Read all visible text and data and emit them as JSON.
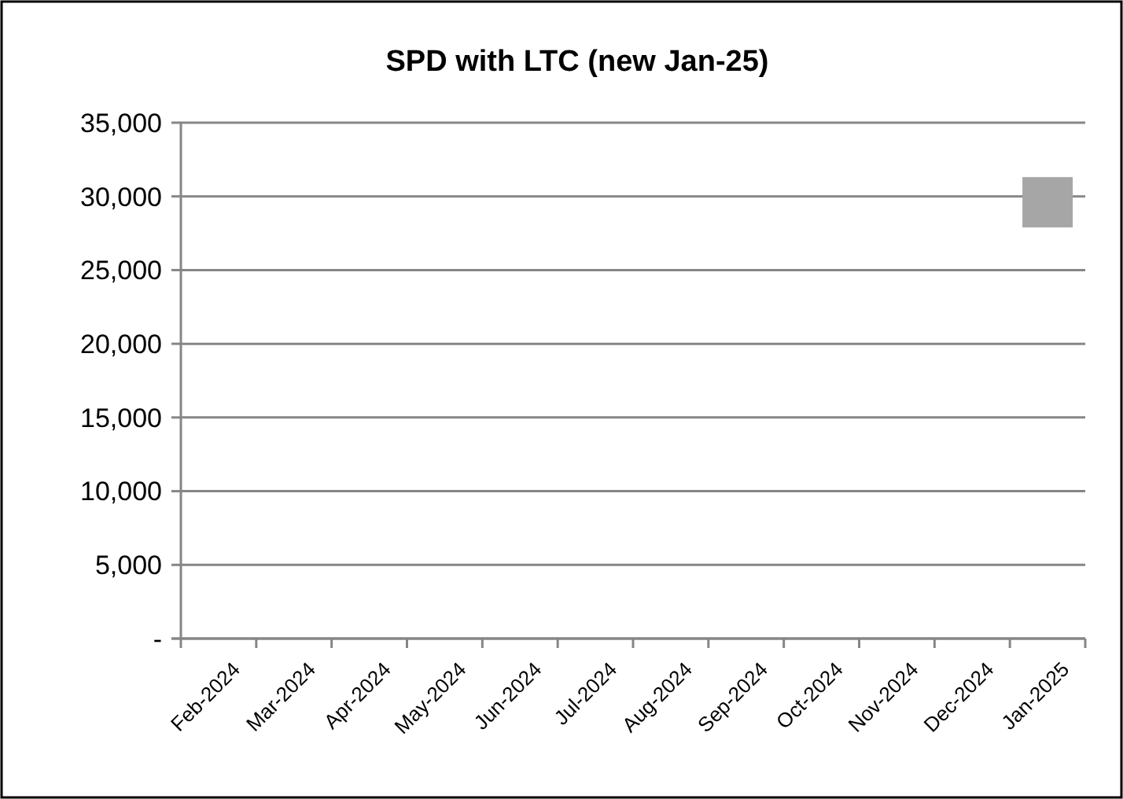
{
  "chart_data": {
    "type": "scatter",
    "title": "SPD with LTC (new Jan-25)",
    "categories": [
      "Feb-2024",
      "Mar-2024",
      "Apr-2024",
      "May-2024",
      "Jun-2024",
      "Jul-2024",
      "Aug-2024",
      "Sep-2024",
      "Oct-2024",
      "Nov-2024",
      "Dec-2024",
      "Jan-2025"
    ],
    "series": [
      {
        "color": "#a6a6a6",
        "values": [
          null,
          null,
          null,
          null,
          null,
          null,
          null,
          null,
          null,
          null,
          null,
          29600
        ]
      }
    ],
    "ylim": [
      0,
      35000
    ],
    "yticks": [
      {
        "value": 0,
        "label": "-"
      },
      {
        "value": 5000,
        "label": "5,000"
      },
      {
        "value": 10000,
        "label": "10,000"
      },
      {
        "value": 15000,
        "label": "15,000"
      },
      {
        "value": 20000,
        "label": "20,000"
      },
      {
        "value": 25000,
        "label": "25,000"
      },
      {
        "value": 30000,
        "label": "30,000"
      },
      {
        "value": 35000,
        "label": "35,000"
      }
    ],
    "grid": "y",
    "marker": "square"
  }
}
